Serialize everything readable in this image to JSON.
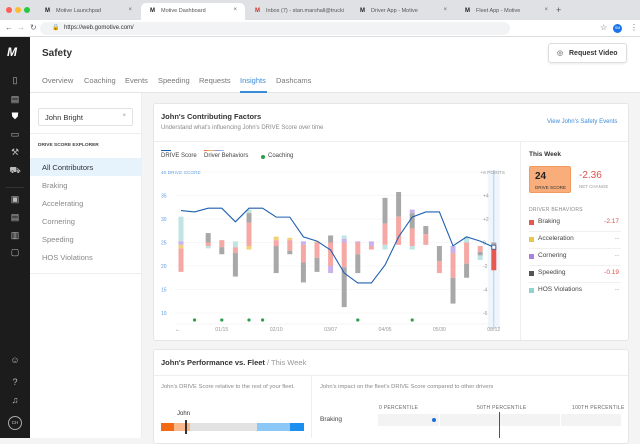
{
  "browser": {
    "tabs": [
      {
        "label": "Motive Launchpad",
        "active": false
      },
      {
        "label": "Motive Dashboard",
        "active": true
      },
      {
        "label": "Inbox (7) - stan.marshall@trucki",
        "active": false
      },
      {
        "label": "Driver App - Motive",
        "active": false
      },
      {
        "label": "Fleet App - Motive",
        "active": false
      }
    ],
    "url": "https://web.gomotive.com/",
    "profile": "SM"
  },
  "app": {
    "logo": "M",
    "title": "Safety",
    "request_video": "Request Video",
    "tabs": [
      "Overview",
      "Coaching",
      "Events",
      "Speeding",
      "Requests",
      "Insights",
      "Dashcams"
    ],
    "active_tab": "Insights",
    "user_initials": "CH"
  },
  "explorer": {
    "search_value": "John Bright",
    "heading": "DRIVE SCORE EXPLORER",
    "items": [
      "All Contributors",
      "Braking",
      "Accelerating",
      "Cornering",
      "Speeding",
      "HOS Violations"
    ],
    "active": "All Contributors"
  },
  "factors": {
    "title": "John's Contributing Factors",
    "subtitle": "Understand what's influencing John's DRIVE Score over time",
    "link": "View John's Safety Events",
    "legend": {
      "drive_score": "DRIVE Score",
      "behaviors": "Driver Behaviors",
      "coaching": "Coaching"
    },
    "this_week": {
      "title": "This Week",
      "score": "24",
      "score_label": "DRIVE SCORE",
      "net": "-2.36",
      "net_label": "NET CHANGE",
      "behaviors_label": "DRIVER BEHAVIORS",
      "behaviors": [
        {
          "name": "Braking",
          "value": "-2.17",
          "color": "#e8584f"
        },
        {
          "name": "Acceleration",
          "value": "--",
          "color": "#e8c84a"
        },
        {
          "name": "Cornering",
          "value": "--",
          "color": "#a97fe0"
        },
        {
          "name": "Speeding",
          "value": "-0.19",
          "color": "#555555"
        },
        {
          "name": "HOS Violations",
          "value": "--",
          "color": "#8fd3cf"
        }
      ]
    }
  },
  "chart_data": {
    "type": "line",
    "left_axis": {
      "label": "40 DRIVE SCORE",
      "ticks": [
        "35",
        "30",
        "25",
        "20",
        "15",
        "10"
      ],
      "range": [
        10,
        40
      ]
    },
    "right_axis": {
      "label": "+6 POINTS",
      "ticks": [
        "+4",
        "+2",
        "0",
        "-2",
        "-4",
        "-6"
      ],
      "range": [
        -6,
        6
      ]
    },
    "x_labels": [
      {
        "i": 3,
        "label": "01/15"
      },
      {
        "i": 7,
        "label": "02/10"
      },
      {
        "i": 11,
        "label": "03/07"
      },
      {
        "i": 15,
        "label": "04/05"
      },
      {
        "i": 19,
        "label": "05/30"
      },
      {
        "i": 23,
        "label": "08/12"
      }
    ],
    "drive_score": [
      31.8,
      31.5,
      32.3,
      32.3,
      29.4,
      32.3,
      32.3,
      30.4,
      30.4,
      26.2,
      25.3,
      23.4,
      18.5,
      16.4,
      16.4,
      20.2,
      26.2,
      30.4,
      31.5,
      31.5,
      24.3,
      26.2,
      25.3,
      24
    ],
    "coaching_weeks": [
      1,
      3,
      5,
      6,
      13,
      17
    ],
    "colors": {
      "line": "#1f5fb0",
      "braking": "#f5a8a4",
      "braking_current": "#e8584f",
      "acceleration": "#f0d27a",
      "cornering": "#c9b2ec",
      "speeding": "#a8a8a8",
      "hos": "#bfe5e3",
      "coaching": "#2e9e4a"
    },
    "behavior_bars": [
      [
        [
          "hos",
          2.2,
          0.1
        ],
        [
          "cornering",
          0.1,
          -0.2
        ],
        [
          "acceleration",
          -0.2,
          -0.5
        ],
        [
          "braking",
          -0.5,
          -2.5
        ]
      ],
      [],
      [
        [
          "speeding",
          0.8,
          0
        ],
        [
          "braking",
          0,
          -0.3
        ],
        [
          "hos",
          -0.3,
          -0.5
        ]
      ],
      [
        [
          "braking",
          0.2,
          -0.4
        ],
        [
          "speeding",
          -0.4,
          -1.0
        ]
      ],
      [
        [
          "hos",
          0.1,
          -0.4
        ],
        [
          "braking",
          -0.4,
          -0.9
        ],
        [
          "speeding",
          -0.9,
          -2.9
        ]
      ],
      [
        [
          "hos",
          2.8,
          2.5
        ],
        [
          "speeding",
          2.5,
          1.7
        ],
        [
          "braking",
          1.7,
          -0.3
        ],
        [
          "acceleration",
          -0.3,
          -0.6
        ]
      ],
      [],
      [
        [
          "acceleration",
          0.5,
          0.2
        ],
        [
          "braking",
          0.2,
          -0.3
        ],
        [
          "speeding",
          -0.3,
          -2.6
        ]
      ],
      [
        [
          "acceleration",
          0.4,
          0.2
        ],
        [
          "braking",
          0.2,
          -0.7
        ],
        [
          "speeding",
          -0.7,
          -1.0
        ]
      ],
      [
        [
          "cornering",
          0.1,
          -0.2
        ],
        [
          "braking",
          -0.2,
          -1.7
        ],
        [
          "speeding",
          -1.7,
          -3.4
        ]
      ],
      [
        [
          "acceleration",
          0.1,
          0
        ],
        [
          "braking",
          0,
          -1.3
        ],
        [
          "speeding",
          -1.3,
          -2.5
        ]
      ],
      [
        [
          "speeding",
          0.6,
          0
        ],
        [
          "braking",
          0,
          -2.0
        ],
        [
          "cornering",
          -2.0,
          -2.6
        ]
      ],
      [
        [
          "hos",
          0.6,
          0.3
        ],
        [
          "cornering",
          0.3,
          0
        ],
        [
          "braking",
          0,
          -2.1
        ],
        [
          "speeding",
          -2.1,
          -5.5
        ]
      ],
      [
        [
          "cornering",
          0.1,
          0
        ],
        [
          "braking",
          0,
          -1.0
        ],
        [
          "speeding",
          -1.0,
          -2.6
        ]
      ],
      [
        [
          "cornering",
          0.1,
          -0.3
        ],
        [
          "braking",
          -0.3,
          -0.6
        ]
      ],
      [
        [
          "speeding",
          3.8,
          1.6
        ],
        [
          "braking",
          1.6,
          -0.2
        ],
        [
          "hos",
          -0.2,
          -0.6
        ]
      ],
      [
        [
          "speeding",
          4.3,
          2.2
        ],
        [
          "braking",
          2.2,
          -0.2
        ]
      ],
      [
        [
          "cornering",
          2.8,
          2.5
        ],
        [
          "speeding",
          2.5,
          1.2
        ],
        [
          "braking",
          1.2,
          -0.3
        ],
        [
          "hos",
          -0.3,
          -0.6
        ]
      ],
      [
        [
          "speeding",
          1.4,
          0.7
        ],
        [
          "braking",
          0.7,
          -0.2
        ]
      ],
      [
        [
          "speeding",
          -0.3,
          -1.6
        ],
        [
          "braking",
          -1.6,
          -2.6
        ]
      ],
      [
        [
          "cornering",
          -0.3,
          -0.9
        ],
        [
          "braking",
          -0.9,
          -3.0
        ],
        [
          "speeding",
          -3.0,
          -5.2
        ]
      ],
      [
        [
          "hos",
          0.5,
          0
        ],
        [
          "braking",
          0,
          -1.8
        ],
        [
          "speeding",
          -1.8,
          -3.0
        ]
      ],
      [
        [
          "braking",
          -0.3,
          -0.8
        ],
        [
          "speeding",
          -0.8,
          -1.1
        ],
        [
          "hos",
          -1.1,
          -1.5
        ]
      ],
      [
        [
          "speeding",
          0,
          -0.19
        ],
        [
          "braking_current",
          -0.19,
          -2.36
        ]
      ]
    ]
  },
  "fleet": {
    "title": "John's Performance vs. Fleet",
    "period": "/ This Week",
    "left_desc": "John's DRIVE Score relative to the rest of your fleet.",
    "marker": "John",
    "right_desc": "John's impact on the fleet's DRIVE Score compared to other drivers",
    "percentiles": [
      "0 PERCENTILE",
      "50TH PERCENTILE",
      "100TH PERCENTILE"
    ],
    "row_label": "Braking"
  }
}
